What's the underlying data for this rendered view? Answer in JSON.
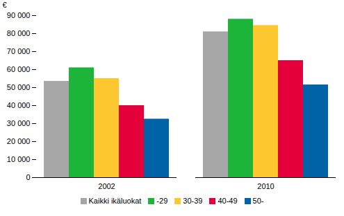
{
  "chart_data": {
    "type": "bar",
    "y_label": "€",
    "categories": [
      "2002",
      "2010"
    ],
    "series": [
      {
        "name": "Kaikki ikäluokat",
        "color": "#a6a6a6",
        "values": [
          53500,
          81000
        ]
      },
      {
        "name": "-29",
        "color": "#1db43a",
        "values": [
          61000,
          88000
        ]
      },
      {
        "name": "30-39",
        "color": "#fdc82f",
        "values": [
          55000,
          84500
        ]
      },
      {
        "name": "40-49",
        "color": "#e4003a",
        "values": [
          40000,
          65000
        ]
      },
      {
        "name": "50-",
        "color": "#0063a8",
        "values": [
          32500,
          51500
        ]
      }
    ],
    "ylim": [
      0,
      90000
    ],
    "yticks": [
      0,
      {
        "value": 10000,
        "label": "10 000"
      },
      {
        "value": 20000,
        "label": "20 000"
      },
      {
        "value": 30000,
        "label": "30 000"
      },
      {
        "value": 40000,
        "label": "40 000"
      },
      {
        "value": 50000,
        "label": "50 000"
      },
      {
        "value": 60000,
        "label": "60 000"
      },
      {
        "value": 70000,
        "label": "70 000"
      },
      {
        "value": 80000,
        "label": "80 000"
      },
      {
        "value": 90000,
        "label": "90 000"
      }
    ],
    "grid": false,
    "legend": "bottom"
  }
}
